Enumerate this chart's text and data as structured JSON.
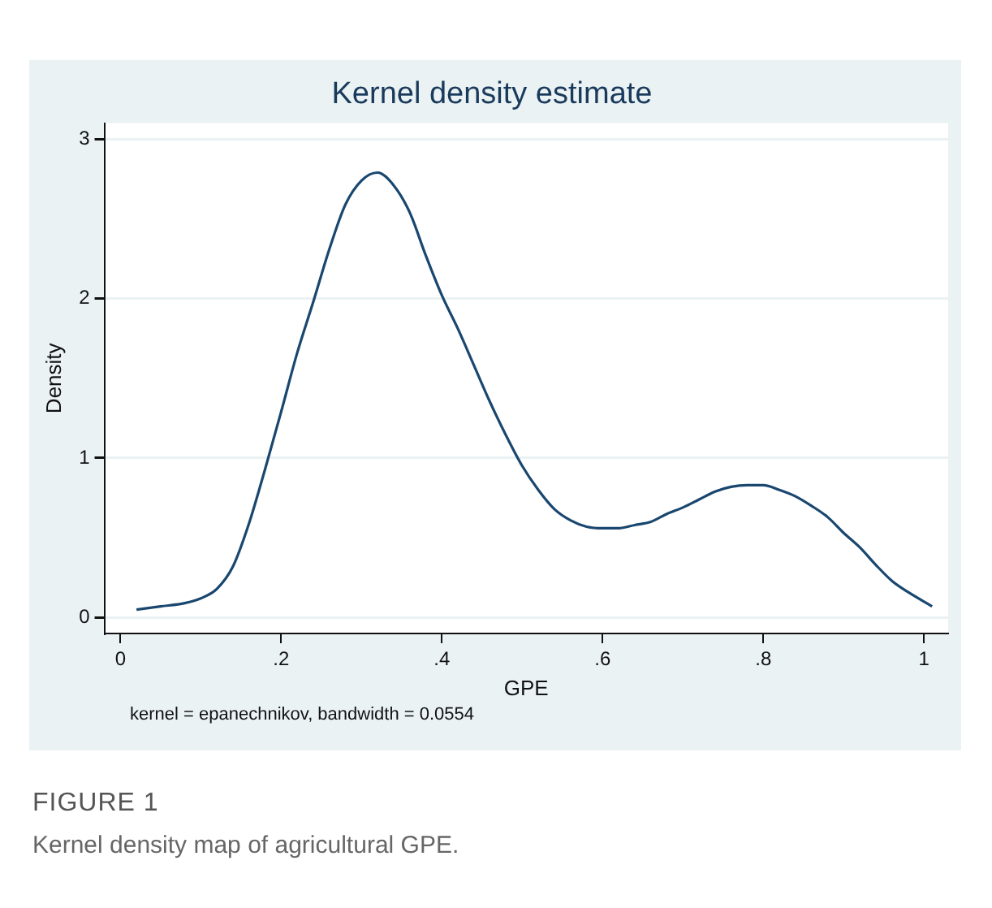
{
  "chart_data": {
    "type": "line",
    "title": "Kernel density estimate",
    "xlabel": "GPE",
    "ylabel": "Density",
    "x": [
      0.02,
      0.05,
      0.08,
      0.1,
      0.12,
      0.14,
      0.16,
      0.18,
      0.2,
      0.22,
      0.24,
      0.26,
      0.28,
      0.3,
      0.32,
      0.34,
      0.36,
      0.38,
      0.4,
      0.42,
      0.44,
      0.46,
      0.48,
      0.5,
      0.52,
      0.54,
      0.56,
      0.58,
      0.6,
      0.62,
      0.64,
      0.66,
      0.68,
      0.7,
      0.72,
      0.74,
      0.76,
      0.78,
      0.8,
      0.82,
      0.84,
      0.86,
      0.88,
      0.9,
      0.92,
      0.94,
      0.96,
      0.98,
      1.01
    ],
    "series": [
      {
        "color": "#1a476f",
        "values": [
          0.05,
          0.07,
          0.09,
          0.12,
          0.18,
          0.32,
          0.59,
          0.93,
          1.29,
          1.66,
          1.98,
          2.31,
          2.59,
          2.74,
          2.79,
          2.71,
          2.54,
          2.27,
          2.02,
          1.81,
          1.58,
          1.35,
          1.14,
          0.95,
          0.8,
          0.68,
          0.61,
          0.57,
          0.56,
          0.56,
          0.58,
          0.6,
          0.65,
          0.69,
          0.74,
          0.79,
          0.82,
          0.83,
          0.83,
          0.8,
          0.76,
          0.7,
          0.63,
          0.53,
          0.44,
          0.33,
          0.23,
          0.16,
          0.07
        ]
      }
    ],
    "xlim": [
      -0.02,
      1.03
    ],
    "ylim": [
      -0.1,
      3.1
    ],
    "xticks": [
      0,
      {
        "value": 0.2,
        "label": ".2"
      },
      {
        "value": 0.4,
        "label": ".4"
      },
      {
        "value": 0.6,
        "label": ".6"
      },
      {
        "value": 0.8,
        "label": ".8"
      },
      1
    ],
    "yticks": [
      0,
      1,
      2,
      3
    ],
    "grid": "y",
    "legend": false,
    "marker": "none",
    "line_style": "solid",
    "annotations": [
      "kernel = epanechnikov, bandwidth = 0.0554",
      "FIGURE 1",
      "Kernel density map of agricultural GPE."
    ]
  }
}
